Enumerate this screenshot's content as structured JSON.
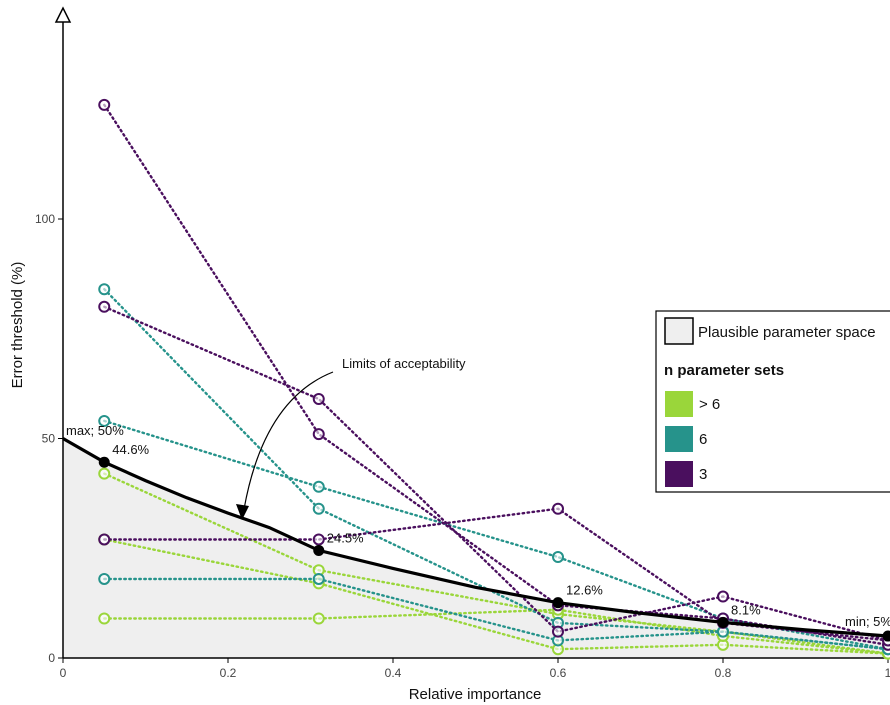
{
  "chart_data": {
    "type": "line",
    "xlabel": "Relative importance",
    "ylabel": "Error threshold (%)",
    "xlim": [
      0,
      1
    ],
    "ylim": [
      0,
      133
    ],
    "x_ticks": [
      "0",
      "0.2",
      "0.4",
      "0.6",
      "0.8",
      "1"
    ],
    "y_ticks": [
      "0",
      "50",
      "100"
    ],
    "y_tick_values": [
      0,
      50,
      100
    ],
    "x_tick_values": [
      0,
      0.2,
      0.4,
      0.6,
      0.8,
      1
    ],
    "limit_curve": {
      "x": [
        0,
        0.05,
        0.1,
        0.15,
        0.2,
        0.25,
        0.31,
        0.4,
        0.5,
        0.6,
        0.7,
        0.8,
        0.9,
        1.0
      ],
      "y": [
        50,
        44.6,
        40.4,
        36.5,
        33.0,
        29.7,
        24.5,
        20.4,
        16.1,
        12.6,
        10.2,
        8.1,
        6.4,
        5
      ]
    },
    "limit_points": [
      {
        "x": 0.05,
        "y": 44.6,
        "label": "44.6%"
      },
      {
        "x": 0.31,
        "y": 24.5,
        "label": "24.5%"
      },
      {
        "x": 0.6,
        "y": 12.6,
        "label": "12.6%"
      },
      {
        "x": 0.8,
        "y": 8.1,
        "label": "8.1%"
      },
      {
        "x": 1.0,
        "y": 5,
        "label": "min; 5%"
      }
    ],
    "endpoint_label_max": "max; 50%",
    "annotation": "Limits of acceptability",
    "series_x": [
      0.05,
      0.31,
      0.6,
      0.8,
      1.0
    ],
    "series": [
      {
        "group": "> 6",
        "color": "#9ad63a",
        "values": [
          42,
          20,
          10,
          6,
          1
        ]
      },
      {
        "group": "> 6",
        "color": "#9ad63a",
        "values": [
          27,
          17,
          2,
          3,
          1
        ]
      },
      {
        "group": "> 6",
        "color": "#9ad63a",
        "values": [
          9,
          9,
          11,
          5,
          1
        ]
      },
      {
        "group": "6",
        "color": "#26938b",
        "values": [
          84,
          34,
          8,
          6,
          2
        ]
      },
      {
        "group": "6",
        "color": "#26938b",
        "values": [
          54,
          39,
          23,
          9,
          2
        ]
      },
      {
        "group": "6",
        "color": "#26938b",
        "values": [
          18,
          18,
          4,
          6,
          2
        ]
      },
      {
        "group": "3",
        "color": "#4a0f5e",
        "values": [
          126,
          51,
          12,
          9,
          3
        ]
      },
      {
        "group": "3",
        "color": "#4a0f5e",
        "values": [
          80,
          59,
          6,
          14,
          4
        ]
      },
      {
        "group": "3",
        "color": "#4a0f5e",
        "values": [
          27,
          27,
          34,
          8,
          4
        ]
      }
    ],
    "legend": {
      "area_label": "Plausible parameter space",
      "title": "n parameter sets",
      "items": [
        {
          "label": "> 6",
          "color": "#9ad63a"
        },
        {
          "label": "6",
          "color": "#26938b"
        },
        {
          "label": "3",
          "color": "#4a0f5e"
        }
      ]
    }
  }
}
